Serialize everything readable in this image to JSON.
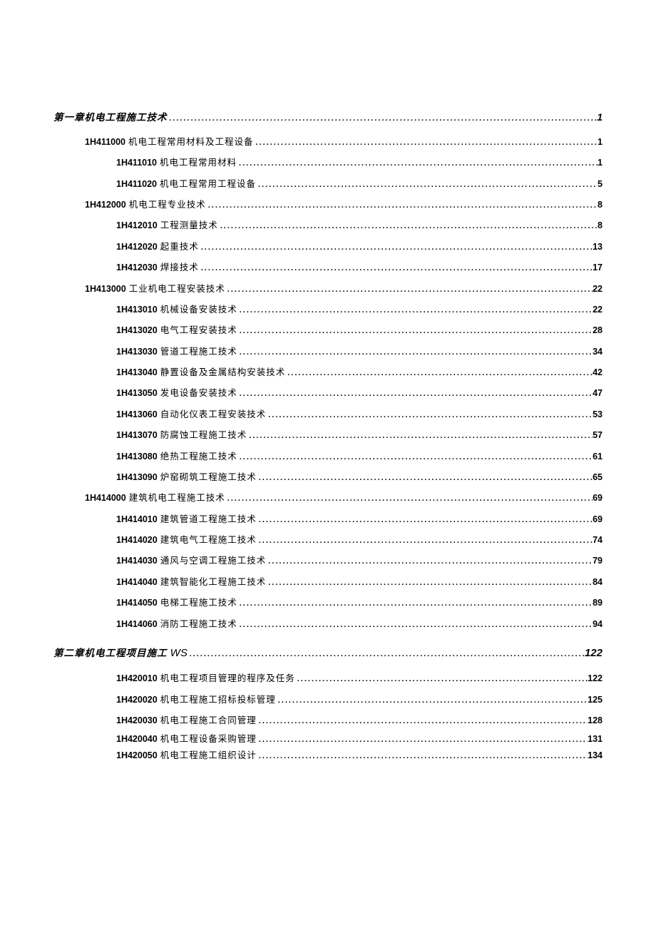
{
  "toc": [
    {
      "level": 1,
      "code": "",
      "title": "第一章机电工程施工技术",
      "page": "1",
      "big": false
    },
    {
      "level": 2,
      "code": "1H411000",
      "title": "机电工程常用材料及工程设备",
      "page": "1"
    },
    {
      "level": 3,
      "code": "1H411010",
      "title": "机电工程常用材料",
      "page": "1"
    },
    {
      "level": 3,
      "code": "1H411020",
      "title": "机电工程常用工程设备",
      "page": "5"
    },
    {
      "level": 2,
      "code": "1H412000",
      "title": "机电工程专业技术",
      "page": "8"
    },
    {
      "level": 3,
      "code": "1H412010",
      "title": "工程测量技术",
      "page": "8"
    },
    {
      "level": 3,
      "code": "1H412020",
      "title": "起重技术",
      "page": "13"
    },
    {
      "level": 3,
      "code": "1H412030",
      "title": "焊接技术",
      "page": "17"
    },
    {
      "level": 2,
      "code": "1H413000",
      "title": "工业机电工程安装技术",
      "page": "22"
    },
    {
      "level": 3,
      "code": "1H413010",
      "title": "机械设备安装技术",
      "page": "22"
    },
    {
      "level": 3,
      "code": "1H413020",
      "title": "电气工程安装技术",
      "page": "28"
    },
    {
      "level": 3,
      "code": "1H413030",
      "title": "管道工程施工技术",
      "page": "34"
    },
    {
      "level": 3,
      "code": "1H413040",
      "title": "静置设备及金属结构安装技术",
      "page": "42"
    },
    {
      "level": 3,
      "code": "1H413050",
      "title": "发电设备安装技术",
      "page": "47"
    },
    {
      "level": 3,
      "code": "1H413060",
      "title": "自动化仪表工程安装技术",
      "page": "53"
    },
    {
      "level": 3,
      "code": "1H413070",
      "title": "防腐蚀工程施工技术",
      "page": "57"
    },
    {
      "level": 3,
      "code": "1H413080",
      "title": "绝热工程施工技术",
      "page": "61"
    },
    {
      "level": 3,
      "code": "1H413090",
      "title": "炉窑砌筑工程施工技术",
      "page": "65"
    },
    {
      "level": 2,
      "code": "1H414000",
      "title": "建筑机电工程施工技术",
      "page": "69"
    },
    {
      "level": 3,
      "code": "1H414010",
      "title": "建筑管道工程施工技术",
      "page": "69"
    },
    {
      "level": 3,
      "code": "1H414020",
      "title": "建筑电气工程施工技术",
      "page": "74"
    },
    {
      "level": 3,
      "code": "1H414030",
      "title": "通风与空调工程施工技术",
      "page": "79"
    },
    {
      "level": 3,
      "code": "1H414040",
      "title": "建筑智能化工程施工技术",
      "page": "84"
    },
    {
      "level": 3,
      "code": "1H414050",
      "title": "电梯工程施工技术",
      "page": "89"
    },
    {
      "level": 3,
      "code": "1H414060",
      "title": "消防工程施工技术",
      "page": "94"
    },
    {
      "level": 1,
      "code": "",
      "title": "第二章机电工程项目施工",
      "suffix": "WS",
      "page": "122",
      "big": true
    },
    {
      "level": 3,
      "code": "1H420010",
      "title": "机电工程项目管理的程序及任务",
      "page": "122"
    },
    {
      "level": 3,
      "code": "1H420020",
      "title": "机电工程施工招标投标管理",
      "page": "125"
    },
    {
      "level": 3,
      "code": "1H420030",
      "title": "机电工程施工合同管理",
      "page": "128"
    },
    {
      "level": 3,
      "code": "1H420040",
      "title": "机电工程设备采购管理",
      "page": "131",
      "tight": true
    },
    {
      "level": 3,
      "code": "1H420050",
      "title": "机电工程施工组织设计",
      "page": "134",
      "tight": true
    }
  ]
}
